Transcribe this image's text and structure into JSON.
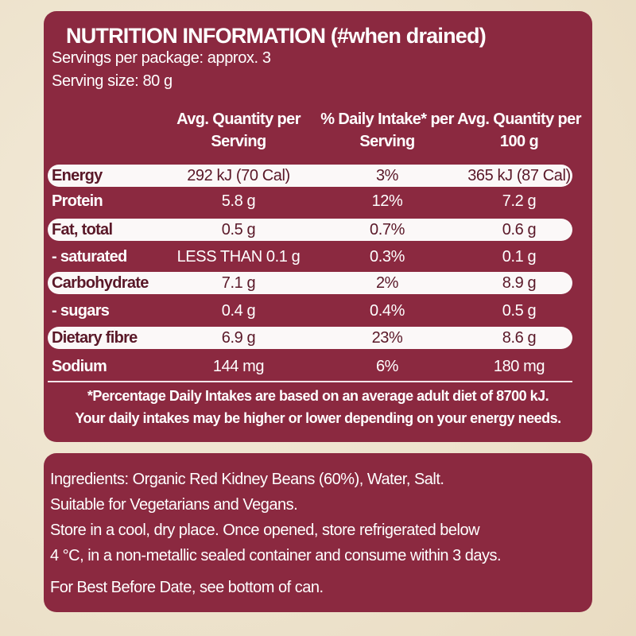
{
  "header": {
    "title": "NUTRITION INFORMATION (#when drained)",
    "servings": "Servings per package: approx. 3",
    "serving_size": "Serving size: 80 g"
  },
  "table": {
    "columns": [
      "Avg. Quantity per Serving",
      "% Daily Intake* per Serving",
      "Avg. Quantity per 100 g"
    ],
    "rows": [
      [
        "Energy",
        "292 kJ (70 Cal)",
        "3%",
        "365 kJ (87 Cal)"
      ],
      [
        "Protein",
        "5.8 g",
        "12%",
        "7.2 g"
      ],
      [
        "Fat, total",
        "0.5 g",
        "0.7%",
        "0.6 g"
      ],
      [
        "- saturated",
        "LESS THAN 0.1 g",
        "0.3%",
        "0.1 g"
      ],
      [
        "Carbohydrate",
        "7.1 g",
        "2%",
        "8.9 g"
      ],
      [
        "- sugars",
        "0.4 g",
        "0.4%",
        "0.5 g"
      ],
      [
        "Dietary fibre",
        "6.9 g",
        "23%",
        "8.6 g"
      ],
      [
        "Sodium",
        "144 mg",
        "6%",
        "180 mg"
      ]
    ]
  },
  "footnote": [
    "*Percentage Daily Intakes are based on an average adult diet of 8700 kJ.",
    "Your daily intakes may be higher or lower depending on your energy needs."
  ],
  "ingredients": [
    "Ingredients: Organic Red Kidney Beans (60%), Water, Salt.",
    "Suitable for Vegetarians and Vegans.",
    "Store in a cool, dry place. Once opened, store refrigerated below",
    "4 °C, in a non-metallic sealed container and consume within 3 days.",
    "For Best Before Date, see bottom of can."
  ]
}
